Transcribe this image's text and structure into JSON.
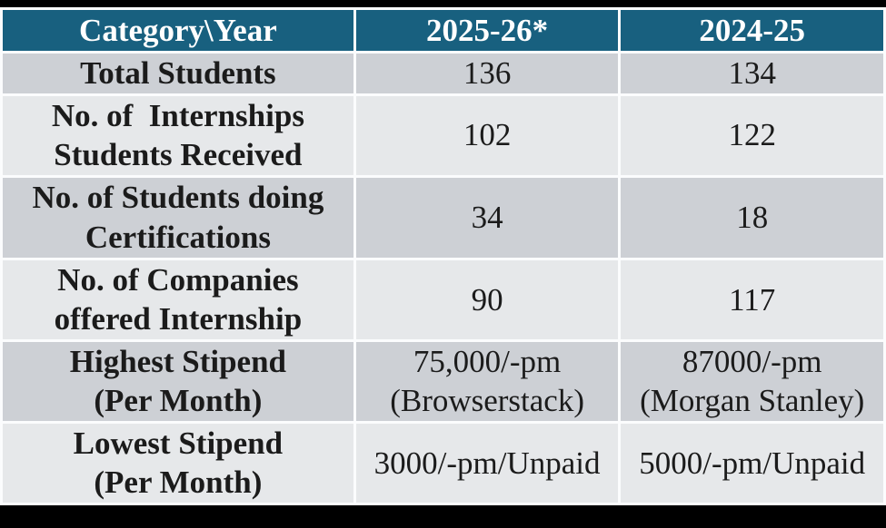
{
  "colors": {
    "page_bg": "#000000",
    "header_bg": "#18607F",
    "header_text": "#FFFFFF",
    "row_dark": "#CDD0D5",
    "row_light": "#E6E8EA",
    "grid": "#FBFCFD",
    "body_text": "#1B1B1B"
  },
  "table": {
    "header": {
      "category": "Category\\Year",
      "year_current": "2025-26*",
      "year_previous": "2024-25"
    },
    "rows": [
      {
        "category": "Total Students",
        "y2025_26": "136",
        "y2024_25": "134"
      },
      {
        "category": "No. of  Internships\nStudents Received",
        "y2025_26": "102",
        "y2024_25": "122"
      },
      {
        "category": "No. of Students doing\nCertifications",
        "y2025_26": "34",
        "y2024_25": "18"
      },
      {
        "category": "No. of Companies\noffered Internship",
        "y2025_26": "90",
        "y2024_25": "117"
      },
      {
        "category": "Highest Stipend\n(Per Month)",
        "y2025_26": "75,000/-pm\n(Browserstack)",
        "y2024_25": "87000/-pm\n(Morgan Stanley)"
      },
      {
        "category": "Lowest Stipend\n(Per Month)",
        "y2025_26": "3000/-pm/Unpaid",
        "y2024_25": "5000/-pm/Unpaid"
      }
    ]
  }
}
